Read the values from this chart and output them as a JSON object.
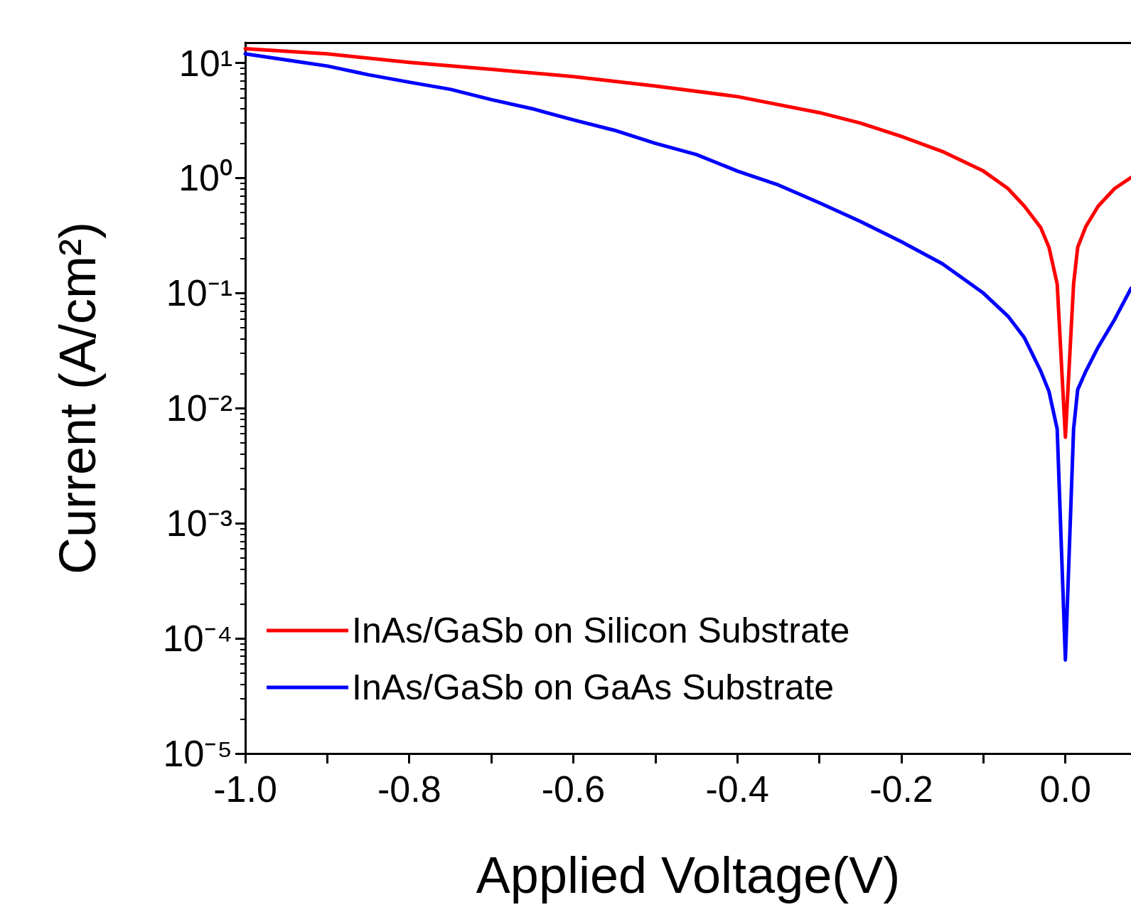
{
  "chart_data": {
    "type": "line",
    "xlabel": "Applied Voltage(V)",
    "ylabel": "Current (A/cm²)",
    "xlim": [
      -1.0,
      0.08
    ],
    "xticks": [
      {
        "value": -1.0,
        "label": "-1.0"
      },
      {
        "value": -0.9,
        "label": null
      },
      {
        "value": -0.8,
        "label": "-0.8"
      },
      {
        "value": -0.7,
        "label": null
      },
      {
        "value": -0.6,
        "label": "-0.6"
      },
      {
        "value": -0.5,
        "label": null
      },
      {
        "value": -0.4,
        "label": "-0.4"
      },
      {
        "value": -0.3,
        "label": null
      },
      {
        "value": -0.2,
        "label": "-0.2"
      },
      {
        "value": -0.1,
        "label": null
      },
      {
        "value": 0.0,
        "label": "0.0"
      }
    ],
    "ylim": [
      1e-05,
      15
    ],
    "yticks": [
      {
        "value": 1e-05,
        "label": "10⁻⁵"
      },
      {
        "value": 0.0001,
        "label": "10⁻⁴"
      },
      {
        "value": 0.001,
        "label": "10⁻³"
      },
      {
        "value": 0.01,
        "label": "10⁻²"
      },
      {
        "value": 0.1,
        "label": "10⁻¹"
      },
      {
        "value": 1,
        "label": "10⁰"
      },
      {
        "value": 10,
        "label": "10¹"
      }
    ],
    "log": "y",
    "grid": false,
    "legend": "bottom left",
    "marker": "none",
    "line_style": "solid",
    "x": [
      -1.0,
      -0.9,
      -0.8,
      -0.7,
      -0.6,
      -0.5,
      -0.4,
      -0.3,
      -0.25,
      -0.2,
      -0.15,
      -0.1,
      -0.07,
      -0.05,
      -0.03,
      -0.02,
      -0.01,
      0.0,
      0.01,
      0.015,
      0.025,
      0.04,
      0.06,
      0.08
    ],
    "series": [
      {
        "name": "InAs/GaSb on Silicon Substrate",
        "color": "#ff0000",
        "values": [
          13.3,
          12.0,
          10.1,
          8.8,
          7.6,
          6.3,
          5.1,
          3.7,
          3.0,
          2.3,
          1.7,
          1.15,
          0.81,
          0.57,
          0.37,
          0.25,
          0.12,
          0.0056,
          0.12,
          0.25,
          0.38,
          0.57,
          0.81,
          1.01
        ]
      },
      {
        "name": "InAs/GaSb on GaAs Substrate",
        "color": "#0000ff",
        "x": [
          -1.0,
          -0.93,
          -0.9,
          -0.85,
          -0.8,
          -0.75,
          -0.7,
          -0.65,
          -0.6,
          -0.55,
          -0.5,
          -0.45,
          -0.4,
          -0.35,
          -0.3,
          -0.25,
          -0.2,
          -0.15,
          -0.1,
          -0.07,
          -0.05,
          -0.03,
          -0.02,
          -0.01,
          0.0,
          0.01,
          0.015,
          0.025,
          0.04,
          0.06,
          0.08
        ],
        "values": [
          12.0,
          10.1,
          9.4,
          7.9,
          6.8,
          5.9,
          4.8,
          4.0,
          3.2,
          2.6,
          2.0,
          1.6,
          1.15,
          0.87,
          0.61,
          0.42,
          0.28,
          0.18,
          0.1,
          0.063,
          0.041,
          0.021,
          0.014,
          0.0066,
          6.5e-05,
          0.0066,
          0.0145,
          0.021,
          0.034,
          0.059,
          0.11
        ]
      }
    ]
  }
}
